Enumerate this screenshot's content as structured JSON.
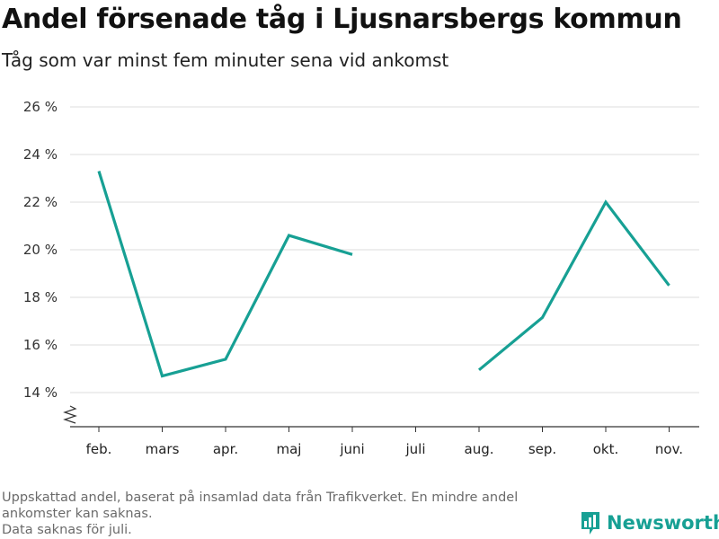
{
  "chart_data": {
    "type": "line",
    "title": "Andel försenade tåg i Ljusnarsbergs kommun",
    "subtitle": "Tåg som var minst fem minuter sena vid ankomst",
    "categories": [
      "feb.",
      "mars",
      "apr.",
      "maj",
      "juni",
      "juli",
      "aug.",
      "sep.",
      "okt.",
      "nov."
    ],
    "series": [
      {
        "values": [
          23.3,
          14.7,
          15.4,
          20.6,
          19.8,
          null,
          14.95,
          17.15,
          22.0,
          18.5
        ]
      }
    ],
    "yticks": [
      14,
      16,
      18,
      20,
      22,
      24,
      26
    ],
    "ytick_labels": [
      "14 %",
      "16 %",
      "18 %",
      "20 %",
      "22 %",
      "24 %",
      "26 %"
    ],
    "ylim": [
      13,
      26
    ],
    "y_axis_break": true,
    "grid": "horizontal",
    "line_color": "#17a094"
  },
  "footnote": {
    "line1": "Uppskattad andel, baserat på insamlad data från Trafikverket. En mindre andel",
    "line2": "ankomster kan saknas.",
    "line3": "Data saknas för juli."
  },
  "brand": {
    "label": "Newsworthy",
    "icon": "newsworthy-logo-icon",
    "color": "#17a094"
  }
}
